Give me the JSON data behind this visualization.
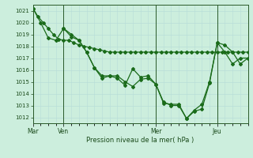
{
  "xlabel": "Pression niveau de la mer( hPa )",
  "bg_color": "#cceedd",
  "grid_color": "#aaddcc",
  "line_color": "#1a6b1a",
  "ylim": [
    1011.5,
    1021.5
  ],
  "yticks": [
    1012,
    1013,
    1014,
    1015,
    1016,
    1017,
    1018,
    1019,
    1020,
    1021
  ],
  "day_labels": [
    "Mar",
    "Ven",
    "Mer",
    "Jeu"
  ],
  "day_positions": [
    0,
    24,
    96,
    144
  ],
  "xlim": [
    0,
    168
  ],
  "line1_x": [
    0,
    4,
    8,
    12,
    16,
    20,
    24,
    28,
    32,
    36,
    40,
    44,
    48,
    52,
    56,
    60,
    64,
    68,
    72,
    76,
    80,
    84,
    88,
    92,
    96,
    100,
    104,
    108,
    112,
    116,
    120,
    124,
    128,
    132,
    136,
    140,
    144,
    148,
    152,
    156,
    160,
    164,
    168
  ],
  "line1_y": [
    1021.2,
    1020.5,
    1020.0,
    1019.5,
    1019.0,
    1018.6,
    1018.5,
    1018.5,
    1018.3,
    1018.1,
    1018.0,
    1017.9,
    1017.8,
    1017.7,
    1017.6,
    1017.5,
    1017.5,
    1017.5,
    1017.5,
    1017.5,
    1017.5,
    1017.5,
    1017.5,
    1017.5,
    1017.5,
    1017.5,
    1017.5,
    1017.5,
    1017.5,
    1017.5,
    1017.5,
    1017.5,
    1017.5,
    1017.5,
    1017.5,
    1017.5,
    1017.5,
    1017.5,
    1017.5,
    1017.5,
    1017.5,
    1017.5,
    1017.5
  ],
  "line2_x": [
    0,
    6,
    12,
    18,
    24,
    30,
    36,
    42,
    48,
    54,
    60,
    66,
    72,
    78,
    84,
    90,
    96,
    102,
    108,
    114,
    120,
    126,
    132,
    138,
    144,
    150,
    156,
    162,
    168
  ],
  "line2_y": [
    1021.2,
    1020.0,
    1018.7,
    1018.5,
    1019.5,
    1019.0,
    1018.5,
    1017.5,
    1016.2,
    1015.3,
    1015.5,
    1015.5,
    1015.0,
    1014.6,
    1015.2,
    1015.3,
    1014.8,
    1013.2,
    1013.1,
    1013.1,
    1011.9,
    1012.6,
    1013.1,
    1015.0,
    1018.3,
    1018.1,
    1017.5,
    1016.5,
    1017.0
  ],
  "line3_x": [
    24,
    30,
    36,
    42,
    48,
    54,
    60,
    66,
    72,
    78,
    84,
    90,
    96,
    102,
    108,
    114,
    120,
    126,
    132,
    138,
    144,
    150,
    156,
    162,
    168
  ],
  "line3_y": [
    1019.5,
    1018.8,
    1018.5,
    1017.5,
    1016.2,
    1015.5,
    1015.5,
    1015.3,
    1014.7,
    1016.1,
    1015.4,
    1015.5,
    1014.8,
    1013.3,
    1013.0,
    1013.0,
    1011.9,
    1012.5,
    1012.7,
    1014.9,
    1018.3,
    1017.5,
    1016.5,
    1017.0,
    1017.0
  ]
}
